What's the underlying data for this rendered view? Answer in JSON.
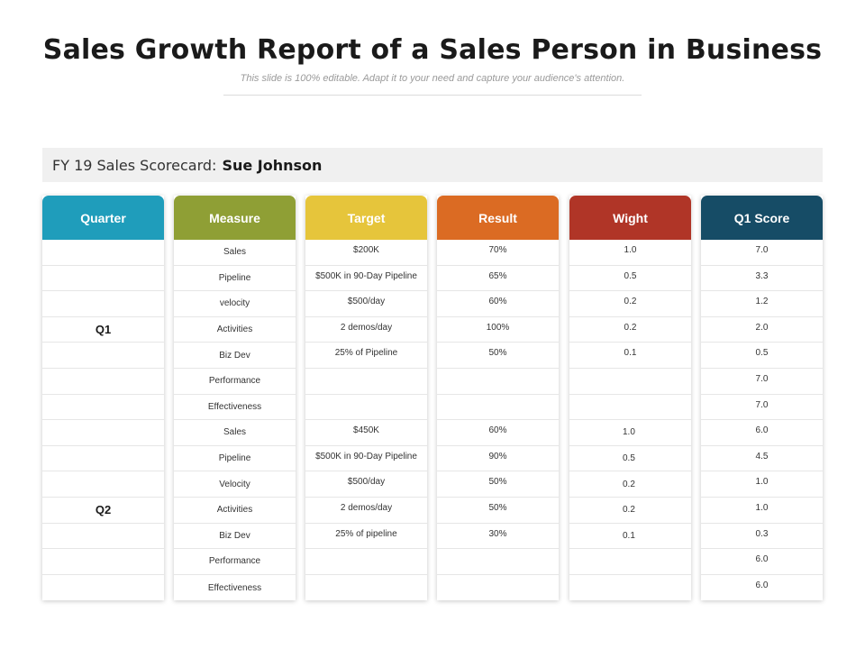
{
  "header": {
    "title": "Sales Growth Report of a Sales Person in Business",
    "subtitle": "This slide is 100% editable. Adapt it to your need and capture your audience's attention."
  },
  "scorecard": {
    "label": "FY 19 Sales Scorecard:",
    "person": "Sue Johnson"
  },
  "colors": {
    "quarter": "#1f9dbb",
    "measure": "#8f9f35",
    "target": "#e6c53b",
    "result": "#db6b23",
    "weight": "#b03527",
    "score": "#164c66"
  },
  "columns": {
    "quarter": {
      "header": "Quarter",
      "cells": [
        "",
        "",
        "",
        "Q1",
        "",
        "",
        "",
        "",
        "",
        "",
        "Q2",
        "",
        "",
        ""
      ]
    },
    "measure": {
      "header": "Measure",
      "cells": [
        "Sales",
        "Pipeline",
        "velocity",
        "Activities",
        "Biz Dev",
        "Performance",
        "Effectiveness",
        "Sales",
        "Pipeline",
        "Velocity",
        "Activities",
        "Biz Dev",
        "Performance",
        "Effectiveness"
      ]
    },
    "target": {
      "header": "Target",
      "cells": [
        "$200K",
        "$500K in 90-Day Pipeline",
        "$500/day",
        "2 demos/day",
        "25% of Pipeline",
        "",
        "",
        "$450K",
        "$500K in 90-Day Pipeline",
        "$500/day",
        "2 demos/day",
        "25% of pipeline",
        "",
        ""
      ]
    },
    "result": {
      "header": "Result",
      "cells": [
        "70%",
        "65%",
        "60%",
        "100%",
        "50%",
        "",
        "",
        "60%",
        "90%",
        "50%",
        "50%",
        "30%",
        "",
        ""
      ]
    },
    "weight": {
      "header": "Wight",
      "cells": [
        "1.0",
        "0.5",
        "0.2",
        "0.2",
        "0.1",
        "",
        "",
        "1.0",
        "0.5",
        "0.2",
        "0.2",
        "0.1",
        "",
        ""
      ]
    },
    "score": {
      "header": "Q1 Score",
      "cells": [
        "7.0",
        "3.3",
        "1.2",
        "2.0",
        "0.5",
        "7.0",
        "7.0",
        "6.0",
        "4.5",
        "1.0",
        "1.0",
        "0.3",
        "6.0",
        "6.0"
      ]
    }
  }
}
